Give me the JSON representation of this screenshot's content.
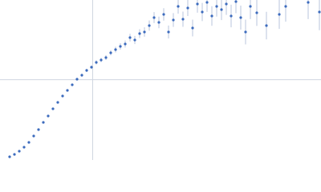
{
  "chart_data": {
    "type": "scatter",
    "xlim": [
      0,
      6
    ],
    "ylim": [
      0,
      2.2
    ],
    "ref_x": 1.732,
    "ref_y": 1.104,
    "color": "#3c6bbd",
    "error_color": "#a9b8d4",
    "ref_color": "#cfd6e0",
    "x": [
      0.18,
      0.27,
      0.36,
      0.45,
      0.54,
      0.63,
      0.72,
      0.81,
      0.9,
      0.99,
      1.08,
      1.17,
      1.26,
      1.35,
      1.44,
      1.53,
      1.62,
      1.71,
      1.8,
      1.89,
      1.98,
      2.07,
      2.16,
      2.25,
      2.34,
      2.43,
      2.52,
      2.61,
      2.7,
      2.79,
      2.88,
      2.97,
      3.06,
      3.15,
      3.24,
      3.33,
      3.42,
      3.51,
      3.6,
      3.69,
      3.78,
      3.87,
      3.96,
      4.05,
      4.14,
      4.23,
      4.32,
      4.41,
      4.5,
      4.59,
      4.68,
      4.8,
      4.98,
      5.22,
      5.34,
      5.76,
      5.97
    ],
    "values": [
      0.044,
      0.077,
      0.121,
      0.176,
      0.242,
      0.33,
      0.418,
      0.517,
      0.605,
      0.704,
      0.792,
      0.88,
      0.957,
      1.034,
      1.111,
      1.166,
      1.232,
      1.276,
      1.342,
      1.375,
      1.408,
      1.474,
      1.518,
      1.562,
      1.595,
      1.683,
      1.65,
      1.738,
      1.76,
      1.848,
      1.958,
      1.892,
      2.002,
      1.76,
      1.925,
      2.112,
      1.936,
      2.09,
      1.815,
      2.145,
      2.035,
      2.167,
      1.98,
      2.112,
      2.068,
      2.145,
      1.98,
      2.178,
      1.958,
      1.76,
      2.112,
      2.024,
      1.848,
      2.002,
      2.112,
      2.167,
      2.035
    ],
    "errors": [
      0.005,
      0.005,
      0.006,
      0.006,
      0.007,
      0.008,
      0.008,
      0.009,
      0.01,
      0.011,
      0.012,
      0.013,
      0.014,
      0.016,
      0.018,
      0.02,
      0.022,
      0.024,
      0.027,
      0.03,
      0.033,
      0.036,
      0.04,
      0.044,
      0.048,
      0.052,
      0.056,
      0.06,
      0.065,
      0.07,
      0.075,
      0.08,
      0.085,
      0.09,
      0.095,
      0.1,
      0.105,
      0.11,
      0.115,
      0.12,
      0.125,
      0.13,
      0.135,
      0.14,
      0.145,
      0.15,
      0.155,
      0.16,
      0.165,
      0.17,
      0.175,
      0.18,
      0.19,
      0.2,
      0.21,
      0.23,
      0.25
    ]
  }
}
